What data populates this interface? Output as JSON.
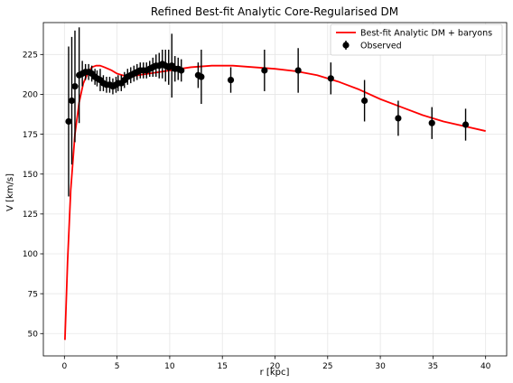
{
  "chart_data": {
    "type": "line",
    "title": "Refined Best-fit Analytic Core-Regularised DM",
    "xlabel": "r [kpc]",
    "ylabel": "V [km/s]",
    "xlim": [
      -2,
      42
    ],
    "ylim": [
      36,
      245
    ],
    "xticks": [
      0,
      5,
      10,
      15,
      20,
      25,
      30,
      35,
      40
    ],
    "yticks": [
      50,
      75,
      100,
      125,
      150,
      175,
      200,
      225
    ],
    "grid": true,
    "legend_position": "top-right",
    "colors": {
      "model": "#ff0000",
      "observed": "#000000",
      "grid": "#e6e6e6"
    },
    "series": [
      {
        "name": "Best-fit Analytic DM + baryons",
        "style": "line",
        "x": [
          0.05,
          0.3,
          0.6,
          1.0,
          1.4,
          1.8,
          2.2,
          2.6,
          3.0,
          3.4,
          3.8,
          4.5,
          5.0,
          5.5,
          6.0,
          7.0,
          8.0,
          9.0,
          10.0,
          11.0,
          12.0,
          13.0,
          14.0,
          16.0,
          18.0,
          20.0,
          22.0,
          24.0,
          26.0,
          28.0,
          30.0,
          32.0,
          34.0,
          36.0,
          38.0,
          40.0
        ],
        "y": [
          46,
          95,
          140,
          175,
          195,
          207,
          213,
          217,
          218,
          218,
          217,
          215,
          213,
          212,
          211,
          212,
          213,
          214,
          215,
          216,
          217,
          217.5,
          218,
          218,
          217,
          216,
          214.5,
          212,
          208,
          203,
          197,
          192,
          187,
          183,
          180,
          177
        ]
      },
      {
        "name": "Observed",
        "style": "errorbar",
        "x": [
          0.4,
          0.7,
          1.0,
          1.4,
          1.7,
          2.0,
          2.3,
          2.6,
          2.9,
          3.1,
          3.4,
          3.7,
          4.0,
          4.3,
          4.6,
          4.9,
          5.1,
          5.4,
          5.7,
          6.0,
          6.3,
          6.6,
          6.9,
          7.2,
          7.5,
          7.8,
          8.1,
          8.4,
          8.7,
          9.0,
          9.3,
          9.6,
          9.9,
          10.2,
          10.5,
          10.8,
          11.1,
          12.7,
          13.0,
          15.8,
          19.0,
          22.2,
          25.3,
          28.5,
          31.7,
          34.9,
          38.1
        ],
        "y": [
          183,
          196,
          205,
          212,
          213,
          214,
          214,
          213,
          211,
          210,
          209,
          207,
          206,
          206,
          205,
          206,
          207,
          207,
          209,
          211,
          212,
          213,
          214,
          215,
          215,
          215,
          216,
          217,
          218,
          218,
          219,
          218,
          217,
          218,
          216,
          216,
          215,
          212,
          211,
          209,
          215,
          215,
          210,
          196,
          185,
          182,
          181
        ],
        "err": [
          47,
          40,
          35,
          30,
          8,
          5,
          5,
          5,
          5,
          5,
          7,
          5,
          5,
          5,
          5,
          5,
          5,
          5,
          5,
          5,
          5,
          5,
          5,
          5,
          5,
          5,
          5,
          6,
          7,
          8,
          9,
          10,
          11,
          20,
          8,
          7,
          7,
          8,
          17,
          8,
          13,
          14,
          10,
          13,
          11,
          10,
          10
        ]
      }
    ]
  }
}
